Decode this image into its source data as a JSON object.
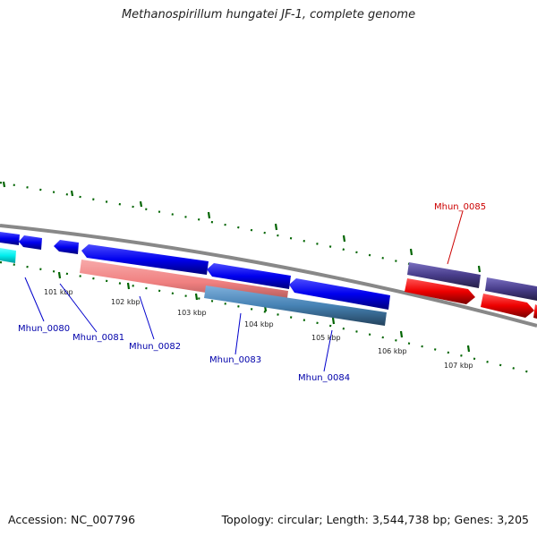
{
  "title": "Methanospirillum hungatei JF-1, complete genome",
  "footer": {
    "accession": "Accession: NC_007796",
    "summary": "Topology: circular; Length: 3,544,738 bp; Genes: 3,205"
  },
  "ticks": [
    "101 kbp",
    "102 kbp",
    "103 kbp",
    "104 kbp",
    "105 kbp",
    "106 kbp",
    "107 kbp"
  ],
  "gene_labels": [
    "Mhun_0080",
    "Mhun_0081",
    "Mhun_0082",
    "Mhun_0083",
    "Mhun_0084",
    "Mhun_0085"
  ],
  "colors": {
    "cds": "#0000ee",
    "highlight_gene": "#ee0000",
    "teal_feature": "#00eeee",
    "pink_feature": "#f08080",
    "steel_feature": "#4682b4",
    "purple_feature": "#483d8b",
    "backbone": "#888888",
    "tick_marks": "#006400",
    "gene_label": "#0000aa",
    "highlight_label": "#cc0000"
  }
}
